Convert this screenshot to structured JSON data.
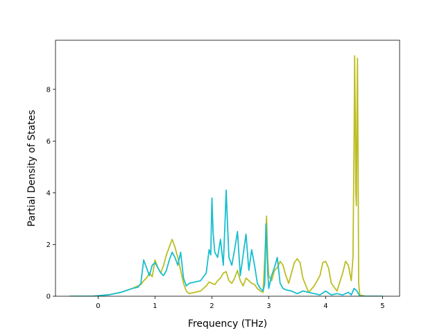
{
  "chart_data": {
    "type": "line",
    "title": "",
    "xlabel": "Frequency (THz)",
    "ylabel": "Partial Density of States",
    "xlim": [
      -0.75,
      5.3
    ],
    "ylim": [
      0,
      9.9
    ],
    "xticks": [
      0,
      1,
      2,
      3,
      4,
      5
    ],
    "yticks": [
      0,
      2,
      4,
      6,
      8
    ],
    "xtick_labels": [
      "0",
      "1",
      "2",
      "3",
      "4",
      "5"
    ],
    "ytick_labels": [
      "0",
      "2",
      "4",
      "6",
      "8"
    ],
    "grid": false,
    "legend": "none",
    "series": [
      {
        "color": "#bcbd22",
        "x": [
          -0.5,
          -0.1,
          0.0,
          0.2,
          0.4,
          0.6,
          0.7,
          0.75,
          0.8,
          0.85,
          0.9,
          0.95,
          1.0,
          1.05,
          1.1,
          1.15,
          1.2,
          1.25,
          1.3,
          1.35,
          1.4,
          1.45,
          1.5,
          1.55,
          1.6,
          1.7,
          1.8,
          1.9,
          1.95,
          2.0,
          2.05,
          2.1,
          2.15,
          2.2,
          2.25,
          2.3,
          2.35,
          2.4,
          2.45,
          2.5,
          2.55,
          2.6,
          2.65,
          2.7,
          2.75,
          2.8,
          2.85,
          2.9,
          2.93,
          2.96,
          2.98,
          3.0,
          3.05,
          3.1,
          3.15,
          3.2,
          3.25,
          3.3,
          3.35,
          3.4,
          3.45,
          3.5,
          3.55,
          3.6,
          3.7,
          3.8,
          3.9,
          3.95,
          4.0,
          4.05,
          4.1,
          4.2,
          4.3,
          4.35,
          4.4,
          4.45,
          4.48,
          4.5,
          4.51,
          4.52,
          4.53,
          4.54,
          4.55,
          4.56,
          4.57,
          4.58,
          4.6,
          4.7,
          5.0
        ],
        "values": [
          0.0,
          0.0,
          0.02,
          0.06,
          0.15,
          0.3,
          0.4,
          0.45,
          0.6,
          0.7,
          0.9,
          0.75,
          1.4,
          1.1,
          0.9,
          1.2,
          1.6,
          1.9,
          2.2,
          1.9,
          1.5,
          1.0,
          0.5,
          0.2,
          0.1,
          0.15,
          0.2,
          0.4,
          0.55,
          0.5,
          0.45,
          0.6,
          0.7,
          0.9,
          0.95,
          0.6,
          0.5,
          0.7,
          1.0,
          0.6,
          0.4,
          0.7,
          0.6,
          0.5,
          0.45,
          0.3,
          0.2,
          0.15,
          1.5,
          3.1,
          1.5,
          0.8,
          0.6,
          1.0,
          1.1,
          1.35,
          1.2,
          0.8,
          0.5,
          0.9,
          1.3,
          1.45,
          1.3,
          0.7,
          0.15,
          0.4,
          0.8,
          1.3,
          1.35,
          1.1,
          0.5,
          0.2,
          0.9,
          1.35,
          1.2,
          0.6,
          1.5,
          6.0,
          9.3,
          7.0,
          4.0,
          3.5,
          7.0,
          9.2,
          5.0,
          0.5,
          0.05,
          0.0,
          0.0
        ]
      },
      {
        "color": "#17becf",
        "x": [
          -0.5,
          -0.1,
          0.0,
          0.2,
          0.4,
          0.6,
          0.7,
          0.75,
          0.8,
          0.85,
          0.9,
          0.95,
          1.0,
          1.05,
          1.1,
          1.15,
          1.2,
          1.25,
          1.3,
          1.35,
          1.4,
          1.45,
          1.5,
          1.55,
          1.6,
          1.7,
          1.8,
          1.9,
          1.95,
          1.98,
          2.0,
          2.02,
          2.05,
          2.1,
          2.15,
          2.2,
          2.23,
          2.25,
          2.28,
          2.3,
          2.35,
          2.4,
          2.45,
          2.5,
          2.55,
          2.6,
          2.65,
          2.7,
          2.75,
          2.8,
          2.85,
          2.9,
          2.93,
          2.95,
          2.98,
          3.0,
          3.05,
          3.1,
          3.15,
          3.2,
          3.25,
          3.3,
          3.4,
          3.5,
          3.6,
          3.7,
          3.8,
          3.9,
          4.0,
          4.1,
          4.2,
          4.3,
          4.4,
          4.45,
          4.5,
          4.55,
          4.6,
          4.7,
          5.0
        ],
        "values": [
          0.0,
          0.0,
          0.02,
          0.06,
          0.15,
          0.3,
          0.35,
          0.5,
          1.4,
          1.1,
          0.8,
          1.2,
          1.3,
          1.1,
          0.9,
          0.8,
          1.0,
          1.4,
          1.7,
          1.5,
          1.2,
          1.7,
          0.7,
          0.4,
          0.5,
          0.55,
          0.6,
          0.9,
          1.8,
          1.6,
          3.8,
          2.5,
          1.7,
          1.5,
          2.2,
          1.2,
          2.8,
          4.1,
          2.5,
          1.5,
          1.2,
          1.8,
          2.5,
          0.8,
          1.6,
          2.4,
          1.0,
          1.8,
          1.2,
          0.5,
          0.3,
          0.2,
          0.5,
          2.8,
          1.0,
          0.3,
          0.8,
          1.1,
          1.5,
          0.5,
          0.3,
          0.25,
          0.2,
          0.1,
          0.2,
          0.15,
          0.1,
          0.05,
          0.2,
          0.05,
          0.1,
          0.05,
          0.15,
          0.05,
          0.3,
          0.2,
          0.0,
          0.0,
          0.0
        ]
      }
    ]
  }
}
